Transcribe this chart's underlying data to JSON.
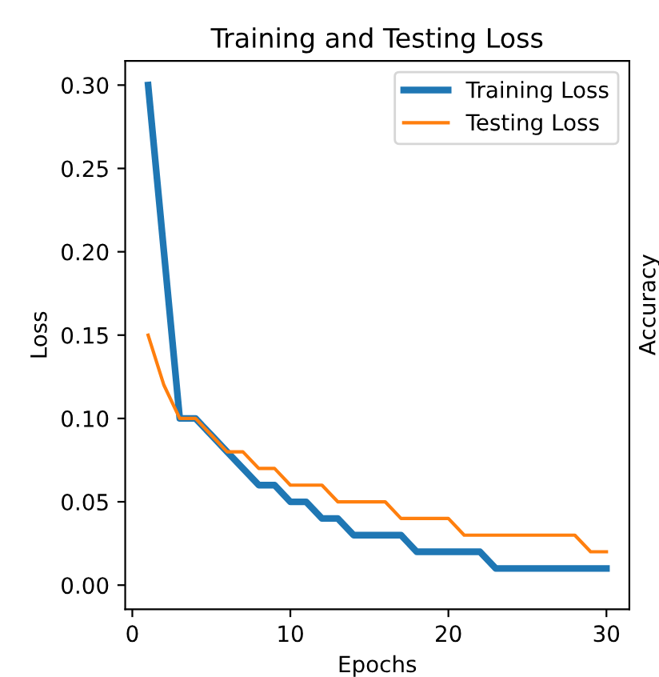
{
  "chart_data": {
    "type": "line",
    "title": "Training and Testing Loss",
    "xlabel": "Epochs",
    "ylabel": "Loss",
    "x": [
      1,
      2,
      3,
      4,
      5,
      6,
      7,
      8,
      9,
      10,
      11,
      12,
      13,
      14,
      15,
      16,
      17,
      18,
      19,
      20,
      21,
      22,
      23,
      24,
      25,
      26,
      27,
      28,
      29,
      30
    ],
    "series": [
      {
        "name": "Training Loss",
        "color": "#1f77b4",
        "values": [
          0.3,
          0.2,
          0.1,
          0.1,
          0.09,
          0.08,
          0.07,
          0.06,
          0.06,
          0.05,
          0.05,
          0.04,
          0.04,
          0.03,
          0.03,
          0.03,
          0.03,
          0.02,
          0.02,
          0.02,
          0.02,
          0.02,
          0.01,
          0.01,
          0.01,
          0.01,
          0.01,
          0.01,
          0.01,
          0.01
        ]
      },
      {
        "name": "Testing Loss",
        "color": "#ff7f0e",
        "values": [
          0.15,
          0.12,
          0.1,
          0.1,
          0.09,
          0.08,
          0.08,
          0.07,
          0.07,
          0.06,
          0.06,
          0.06,
          0.05,
          0.05,
          0.05,
          0.05,
          0.04,
          0.04,
          0.04,
          0.04,
          0.03,
          0.03,
          0.03,
          0.03,
          0.03,
          0.03,
          0.03,
          0.03,
          0.02,
          0.02
        ]
      }
    ],
    "xlim": [
      -0.45,
      31.45
    ],
    "xticks": [
      0,
      10,
      20,
      30
    ],
    "ylim": [
      -0.0145,
      0.3145
    ],
    "yticks": [
      {
        "value": 0,
        "label": "0.00"
      },
      {
        "value": 0.05,
        "label": "0.05"
      },
      {
        "value": 0.1,
        "label": "0.10"
      },
      {
        "value": 0.15,
        "label": "0.15"
      },
      {
        "value": 0.2,
        "label": "0.20"
      },
      {
        "value": 0.25,
        "label": "0.25"
      },
      {
        "value": 0.3,
        "label": "0.30"
      }
    ],
    "legend": "top right",
    "grid": false,
    "line_style": "solid",
    "marker": "none",
    "annotations": [
      "Accuracy"
    ]
  }
}
